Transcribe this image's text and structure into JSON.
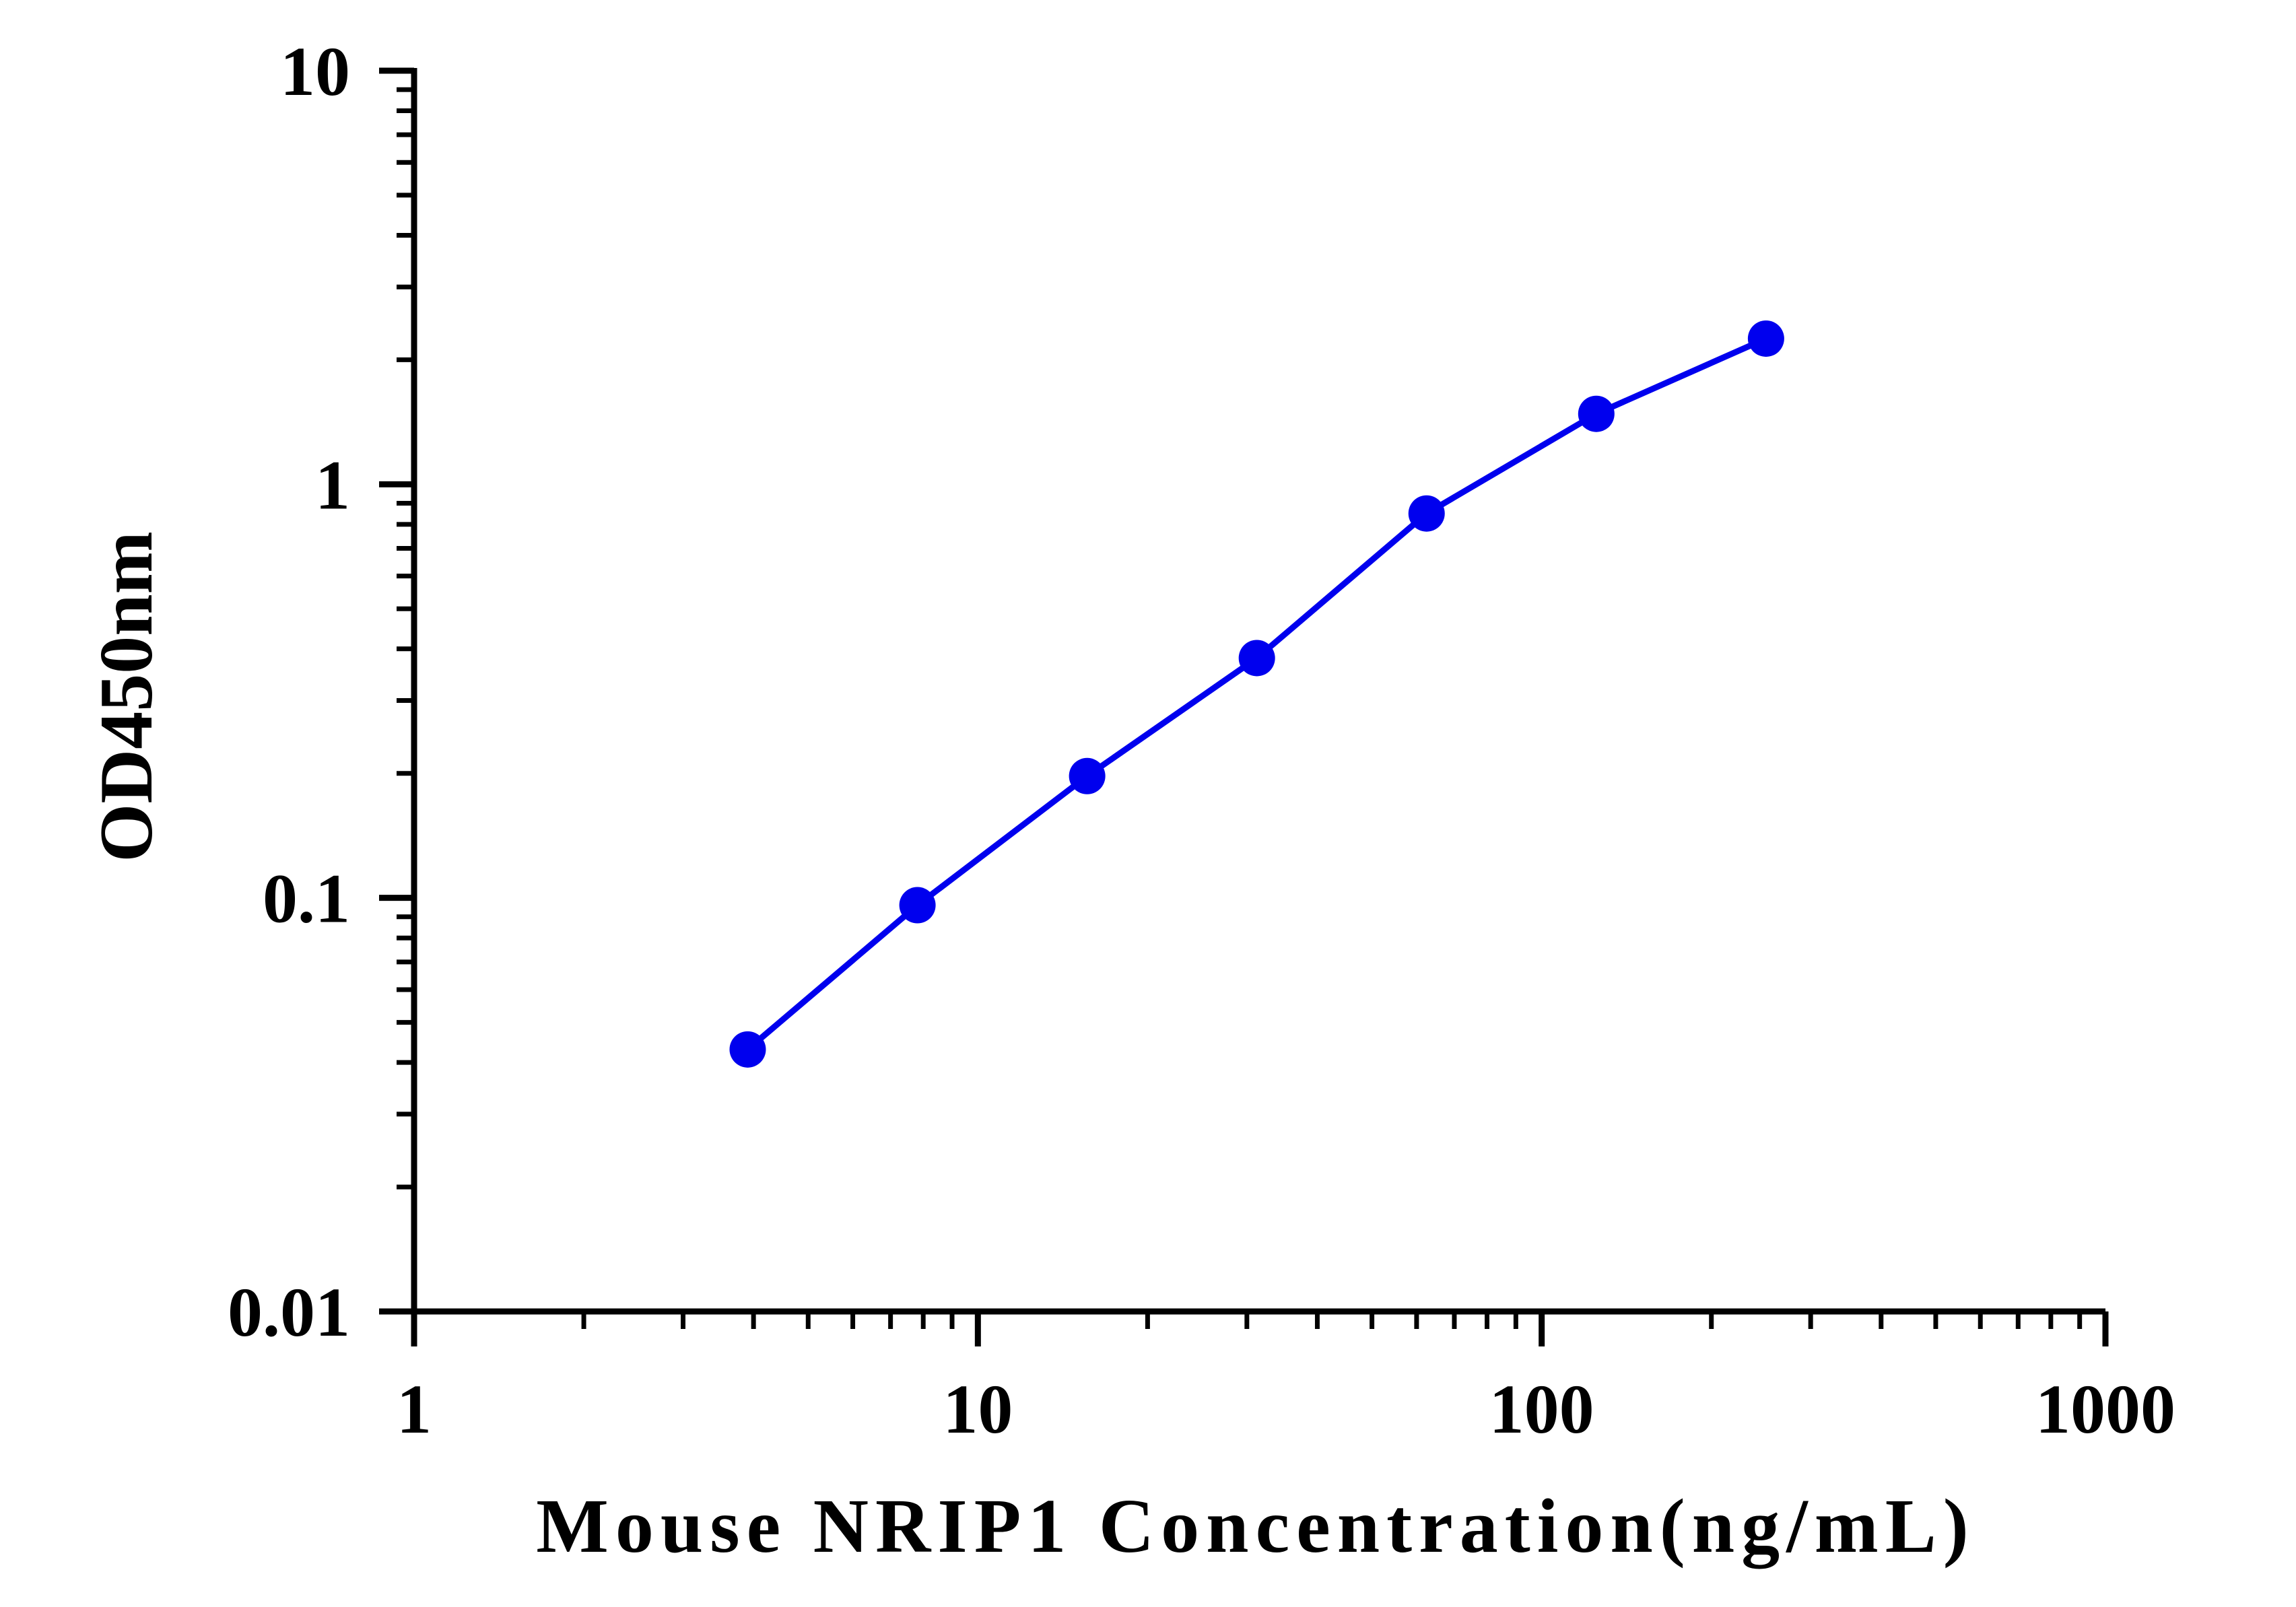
{
  "chart_data": {
    "type": "line",
    "xlabel": "Mouse NRIP1 Concentration(ng/mL)",
    "ylabel": "OD450nm",
    "xscale": "log",
    "yscale": "log",
    "xlim": [
      1,
      1000
    ],
    "ylim": [
      0.01,
      10
    ],
    "x_ticks": [
      {
        "value": 1,
        "label": "1"
      },
      {
        "value": 10,
        "label": "10"
      },
      {
        "value": 100,
        "label": "100"
      },
      {
        "value": 1000,
        "label": "1000"
      }
    ],
    "y_ticks": [
      {
        "value": 0.01,
        "label": "0.01"
      },
      {
        "value": 0.1,
        "label": "0.1"
      },
      {
        "value": 1,
        "label": "1"
      },
      {
        "value": 10,
        "label": "10"
      }
    ],
    "grid": false,
    "series": [
      {
        "color": "#0000ee",
        "marker": "circle",
        "x": [
          3.906,
          7.813,
          15.625,
          31.25,
          62.5,
          125,
          250
        ],
        "y": [
          0.043,
          0.096,
          0.197,
          0.38,
          0.85,
          1.48,
          2.25
        ]
      }
    ]
  }
}
